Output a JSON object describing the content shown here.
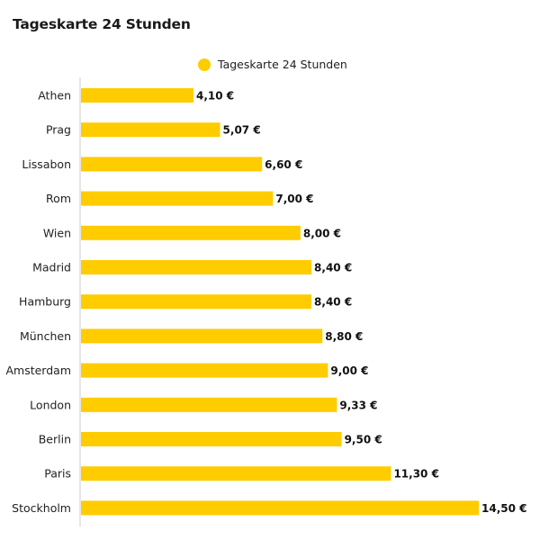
{
  "header": {
    "title": "Tageskarte 24 Stunden"
  },
  "legend": {
    "label": "Tageskarte 24 Stunden"
  },
  "colors": {
    "bar": "#ffcc00",
    "axis": "#cccccc"
  },
  "chart_data": {
    "type": "bar",
    "orientation": "horizontal",
    "title": "Tageskarte 24 Stunden",
    "xlabel": "",
    "ylabel": "",
    "xlim": [
      0,
      14.5
    ],
    "grid": false,
    "legend_position": "top-center",
    "categories": [
      "Athen",
      "Prag",
      "Lissabon",
      "Rom",
      "Wien",
      "Madrid",
      "Hamburg",
      "München",
      "Amsterdam",
      "London",
      "Berlin",
      "Paris",
      "Stockholm"
    ],
    "series": [
      {
        "name": "Tageskarte 24 Stunden",
        "values": [
          4.1,
          5.07,
          6.6,
          7.0,
          8.0,
          8.4,
          8.4,
          8.8,
          9.0,
          9.33,
          9.5,
          11.3,
          14.5
        ],
        "labels": [
          "4,10 €",
          "5,07 €",
          "6,60 €",
          "7,00 €",
          "8,00 €",
          "8,40 €",
          "8,40 €",
          "8,80 €",
          "9,00 €",
          "9,33 €",
          "9,50 €",
          "11,30 €",
          "14,50 €"
        ]
      }
    ]
  }
}
